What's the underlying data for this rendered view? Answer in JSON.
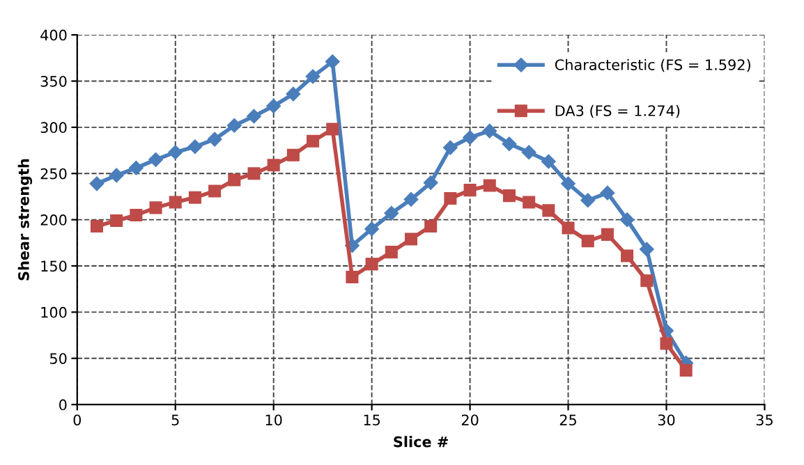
{
  "chart_data": {
    "type": "line",
    "xlabel": "Slice #",
    "ylabel": "Shear strength",
    "x": [
      1,
      2,
      3,
      4,
      5,
      6,
      7,
      8,
      9,
      10,
      11,
      12,
      13,
      14,
      15,
      16,
      17,
      18,
      19,
      20,
      21,
      22,
      23,
      24,
      25,
      26,
      27,
      28,
      29,
      30,
      31
    ],
    "series": [
      {
        "name": "Characteristic (FS = 1.592)",
        "color": "#4a7ebb",
        "marker": "diamond",
        "values": [
          239,
          248,
          256,
          265,
          273,
          279,
          287,
          302,
          312,
          323,
          336,
          355,
          371,
          172,
          190,
          207,
          222,
          240,
          278,
          289,
          296,
          282,
          273,
          263,
          239,
          221,
          229,
          200,
          168,
          80,
          45
        ]
      },
      {
        "name": "DA3 (FS = 1.274)",
        "color": "#be4b48",
        "marker": "square",
        "values": [
          193,
          199,
          205,
          213,
          219,
          224,
          231,
          243,
          250,
          259,
          270,
          285,
          298,
          138,
          152,
          165,
          179,
          193,
          223,
          232,
          237,
          226,
          219,
          210,
          191,
          177,
          184,
          161,
          134,
          66,
          37
        ]
      }
    ],
    "xlim": [
      0,
      35
    ],
    "xticks": [
      0,
      5,
      10,
      15,
      20,
      25,
      30,
      35
    ],
    "ylim": [
      0,
      400
    ],
    "yticks": [
      0,
      50,
      100,
      150,
      200,
      250,
      300,
      350,
      400
    ],
    "grid": true,
    "legend": "top right",
    "line_style": "solid"
  }
}
